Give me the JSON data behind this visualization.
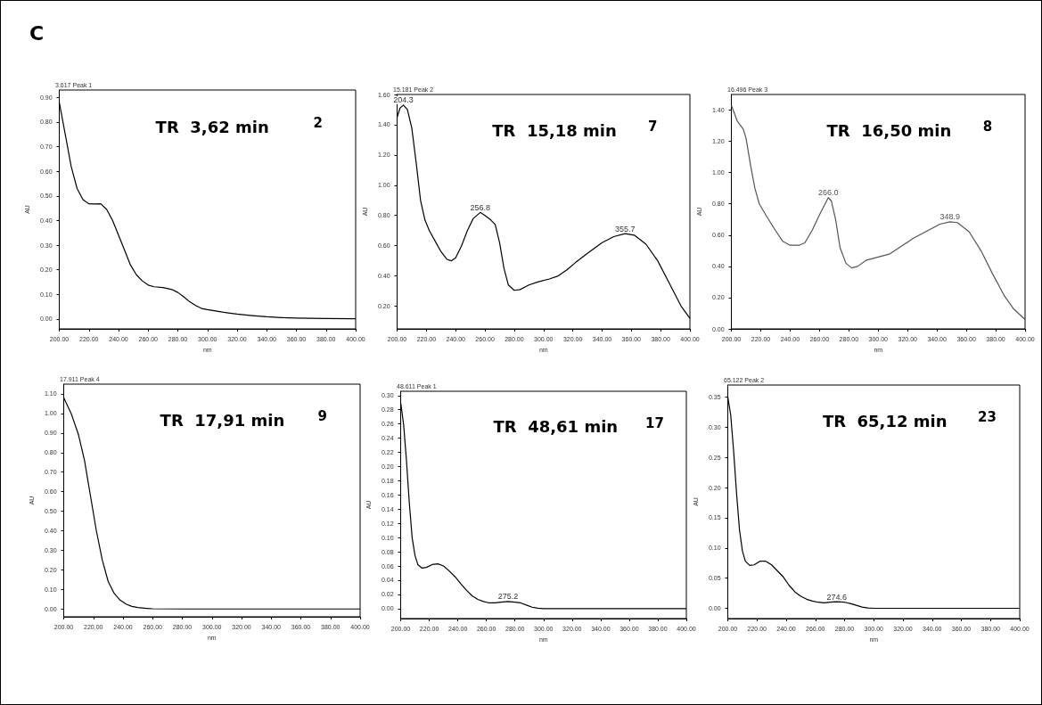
{
  "chart_data": [
    {
      "type": "line",
      "title": "3.617 Peak 1",
      "xlabel": "nm",
      "ylabel": "AU",
      "marker": "none",
      "annotations": [
        "TR  3,62 min",
        "2",
        "C"
      ],
      "x": [
        200,
        204,
        208,
        212,
        216,
        220,
        224,
        228,
        232,
        236,
        240,
        244,
        248,
        252,
        256,
        260,
        264,
        270,
        276,
        280,
        284,
        288,
        292,
        296,
        300,
        310,
        320,
        330,
        340,
        350,
        360,
        380,
        400
      ],
      "series": [
        {
          "color": "#000000",
          "values": [
            0.88,
            0.75,
            0.62,
            0.53,
            0.485,
            0.468,
            0.467,
            0.468,
            0.445,
            0.4,
            0.34,
            0.28,
            0.22,
            0.18,
            0.155,
            0.138,
            0.131,
            0.128,
            0.12,
            0.108,
            0.09,
            0.07,
            0.055,
            0.043,
            0.038,
            0.028,
            0.02,
            0.014,
            0.009,
            0.006,
            0.004,
            0.002,
            0.001
          ]
        }
      ],
      "xlim": [
        200,
        400
      ],
      "ylim": [
        -0.04,
        0.93
      ],
      "xticks": [
        {
          "value": 200,
          "label": "200.00"
        },
        {
          "value": 220,
          "label": "220.00"
        },
        {
          "value": 240,
          "label": "240.00"
        },
        {
          "value": 260,
          "label": "260.00"
        },
        {
          "value": 280,
          "label": "280.00"
        },
        {
          "value": 300,
          "label": "300.00"
        },
        {
          "value": 320,
          "label": "320.00"
        },
        {
          "value": 340,
          "label": "340.00"
        },
        {
          "value": 360,
          "label": "360.00"
        },
        {
          "value": 380,
          "label": "380.00"
        },
        {
          "value": 400,
          "label": "400.00"
        }
      ],
      "yticks": [
        {
          "value": 0,
          "label": "0.00"
        },
        {
          "value": 0.1,
          "label": "0.10"
        },
        {
          "value": 0.2,
          "label": "0.20"
        },
        {
          "value": 0.3,
          "label": "0.30"
        },
        {
          "value": 0.4,
          "label": "0.40"
        },
        {
          "value": 0.5,
          "label": "0.50"
        },
        {
          "value": 0.6,
          "label": "0.60"
        },
        {
          "value": 0.7,
          "label": "0.70"
        },
        {
          "value": 0.8,
          "label": "0.80"
        },
        {
          "value": 0.9,
          "label": "0.90"
        }
      ]
    },
    {
      "type": "line",
      "title": "15.181 Peak 2",
      "xlabel": "nm",
      "ylabel": "AU",
      "marker": "none",
      "annotations": [
        "TR  15,18 min",
        "7",
        {
          "text": "204.3",
          "x": 204.3,
          "y": 1.53
        },
        {
          "text": "256.8",
          "x": 256.8,
          "y": 0.82
        },
        {
          "text": "355.7",
          "x": 355.7,
          "y": 0.68
        }
      ],
      "x": [
        200,
        202,
        204.3,
        207,
        210,
        213,
        216,
        219,
        222,
        226,
        230,
        234,
        237,
        240,
        244,
        248,
        252,
        256.8,
        260,
        264,
        267,
        270,
        273,
        276,
        280,
        284,
        290,
        296,
        304,
        310,
        316,
        322,
        330,
        340,
        348,
        355.7,
        362,
        370,
        378,
        386,
        394,
        400
      ],
      "series": [
        {
          "color": "#000000",
          "values": [
            1.45,
            1.51,
            1.53,
            1.5,
            1.38,
            1.15,
            0.9,
            0.77,
            0.7,
            0.63,
            0.56,
            0.51,
            0.5,
            0.52,
            0.6,
            0.7,
            0.78,
            0.82,
            0.8,
            0.77,
            0.74,
            0.62,
            0.45,
            0.34,
            0.305,
            0.31,
            0.34,
            0.36,
            0.38,
            0.4,
            0.44,
            0.49,
            0.55,
            0.62,
            0.66,
            0.68,
            0.67,
            0.61,
            0.5,
            0.35,
            0.2,
            0.12
          ]
        }
      ],
      "xlim": [
        200,
        400
      ],
      "ylim": [
        0.05,
        1.6
      ],
      "xticks": [
        {
          "value": 200,
          "label": "200.00"
        },
        {
          "value": 220,
          "label": "220.00"
        },
        {
          "value": 240,
          "label": "240.00"
        },
        {
          "value": 260,
          "label": "260.00"
        },
        {
          "value": 280,
          "label": "280.00"
        },
        {
          "value": 300,
          "label": "300.00"
        },
        {
          "value": 320,
          "label": "320.00"
        },
        {
          "value": 340,
          "label": "340.00"
        },
        {
          "value": 360,
          "label": "360.00"
        },
        {
          "value": 380,
          "label": "380.00"
        },
        {
          "value": 400,
          "label": "400.00"
        }
      ],
      "yticks": [
        {
          "value": 0.2,
          "label": "0.20"
        },
        {
          "value": 0.4,
          "label": "0.40"
        },
        {
          "value": 0.6,
          "label": "0.60"
        },
        {
          "value": 0.8,
          "label": "0.80"
        },
        {
          "value": 1.0,
          "label": "1.00"
        },
        {
          "value": 1.2,
          "label": "1.20"
        },
        {
          "value": 1.4,
          "label": "1.40"
        },
        {
          "value": 1.6,
          "label": "1.60"
        }
      ]
    },
    {
      "type": "line",
      "title": "16.496 Peak 3",
      "xlabel": "nm",
      "ylabel": "AU",
      "marker": "none",
      "annotations": [
        "TR  16,50 min",
        "8",
        {
          "text": "266.0",
          "x": 266,
          "y": 0.84
        },
        {
          "text": "348.9",
          "x": 348.9,
          "y": 0.685
        }
      ],
      "x": [
        200,
        202,
        204,
        208,
        210,
        213,
        216,
        219,
        224,
        230,
        235,
        240,
        246,
        250,
        255,
        260,
        266,
        268,
        271,
        274,
        278,
        282,
        286,
        292,
        300,
        308,
        316,
        324,
        334,
        342,
        348.9,
        354,
        362,
        370,
        378,
        386,
        392,
        400
      ],
      "series": [
        {
          "color": "#555555",
          "values": [
            1.43,
            1.38,
            1.33,
            1.28,
            1.22,
            1.05,
            0.9,
            0.8,
            0.72,
            0.63,
            0.56,
            0.535,
            0.535,
            0.55,
            0.63,
            0.73,
            0.84,
            0.82,
            0.7,
            0.52,
            0.42,
            0.39,
            0.4,
            0.44,
            0.46,
            0.48,
            0.53,
            0.58,
            0.63,
            0.67,
            0.685,
            0.68,
            0.62,
            0.5,
            0.35,
            0.21,
            0.13,
            0.06
          ]
        }
      ],
      "xlim": [
        200,
        400
      ],
      "ylim": [
        0,
        1.5
      ],
      "xticks": [
        {
          "value": 200,
          "label": "200.00"
        },
        {
          "value": 220,
          "label": "220.00"
        },
        {
          "value": 240,
          "label": "240.00"
        },
        {
          "value": 260,
          "label": "260.00"
        },
        {
          "value": 280,
          "label": "280.00"
        },
        {
          "value": 300,
          "label": "300.00"
        },
        {
          "value": 320,
          "label": "320.00"
        },
        {
          "value": 340,
          "label": "340.00"
        },
        {
          "value": 360,
          "label": "360.00"
        },
        {
          "value": 380,
          "label": "380.00"
        },
        {
          "value": 400,
          "label": "400.00"
        }
      ],
      "yticks": [
        {
          "value": 0,
          "label": "0.00"
        },
        {
          "value": 0.2,
          "label": "0.20"
        },
        {
          "value": 0.4,
          "label": "0.40"
        },
        {
          "value": 0.6,
          "label": "0.60"
        },
        {
          "value": 0.8,
          "label": "0.80"
        },
        {
          "value": 1.0,
          "label": "1.00"
        },
        {
          "value": 1.2,
          "label": "1.20"
        },
        {
          "value": 1.4,
          "label": "1.40"
        }
      ]
    },
    {
      "type": "line",
      "title": "17.911 Peak 4",
      "xlabel": "nm",
      "ylabel": "AU",
      "marker": "none",
      "annotations": [
        "TR  17,91 min",
        "9"
      ],
      "x": [
        200,
        205,
        210,
        214,
        218,
        222,
        226,
        230,
        234,
        238,
        242,
        246,
        250,
        256,
        260,
        280,
        300,
        320,
        360,
        400
      ],
      "series": [
        {
          "color": "#000000",
          "values": [
            1.08,
            1.0,
            0.89,
            0.76,
            0.58,
            0.4,
            0.25,
            0.14,
            0.08,
            0.045,
            0.025,
            0.013,
            0.007,
            0.003,
            0.001,
            0,
            0,
            0,
            0,
            0
          ]
        }
      ],
      "xlim": [
        200,
        400
      ],
      "ylim": [
        -0.04,
        1.15
      ],
      "xticks": [
        {
          "value": 200,
          "label": "200.00"
        },
        {
          "value": 220,
          "label": "220.00"
        },
        {
          "value": 240,
          "label": "240.00"
        },
        {
          "value": 260,
          "label": "260.00"
        },
        {
          "value": 280,
          "label": "280.00"
        },
        {
          "value": 300,
          "label": "300.00"
        },
        {
          "value": 320,
          "label": "320.00"
        },
        {
          "value": 340,
          "label": "340.00"
        },
        {
          "value": 360,
          "label": "360.00"
        },
        {
          "value": 380,
          "label": "380.00"
        },
        {
          "value": 400,
          "label": "400.00"
        }
      ],
      "yticks": [
        {
          "value": 0,
          "label": "0.00"
        },
        {
          "value": 0.1,
          "label": "0.10"
        },
        {
          "value": 0.2,
          "label": "0.20"
        },
        {
          "value": 0.3,
          "label": "0.30"
        },
        {
          "value": 0.4,
          "label": "0.40"
        },
        {
          "value": 0.5,
          "label": "0.50"
        },
        {
          "value": 0.6,
          "label": "0.60"
        },
        {
          "value": 0.7,
          "label": "0.70"
        },
        {
          "value": 0.8,
          "label": "0.80"
        },
        {
          "value": 0.9,
          "label": "0.90"
        },
        {
          "value": 1.0,
          "label": "1.00"
        },
        {
          "value": 1.1,
          "label": "1.10"
        }
      ]
    },
    {
      "type": "line",
      "title": "48.611 Peak 1",
      "xlabel": "nm",
      "ylabel": "AU",
      "marker": "none",
      "annotations": [
        "TR  48,61 min",
        "17",
        {
          "text": "275.2",
          "x": 275.2,
          "y": 0.01
        }
      ],
      "x": [
        200,
        202,
        204,
        206,
        208,
        210,
        212,
        215,
        218,
        222,
        226,
        230,
        234,
        238,
        242,
        246,
        250,
        254,
        258,
        262,
        266,
        270,
        275.2,
        280,
        284,
        288,
        292,
        296,
        300,
        340,
        400
      ],
      "series": [
        {
          "color": "#000000",
          "values": [
            0.29,
            0.26,
            0.21,
            0.15,
            0.1,
            0.075,
            0.062,
            0.057,
            0.058,
            0.062,
            0.063,
            0.06,
            0.053,
            0.045,
            0.035,
            0.026,
            0.018,
            0.013,
            0.01,
            0.008,
            0.008,
            0.009,
            0.01,
            0.009,
            0.008,
            0.005,
            0.002,
            0.0005,
            0,
            0,
            0
          ]
        }
      ],
      "xlim": [
        200,
        400
      ],
      "ylim": [
        -0.014,
        0.306
      ],
      "xticks": [
        {
          "value": 200,
          "label": "200.00"
        },
        {
          "value": 220,
          "label": "220.00"
        },
        {
          "value": 240,
          "label": "240.00"
        },
        {
          "value": 260,
          "label": "260.00"
        },
        {
          "value": 280,
          "label": "280.00"
        },
        {
          "value": 300,
          "label": "300.00"
        },
        {
          "value": 320,
          "label": "320.00"
        },
        {
          "value": 340,
          "label": "340.00"
        },
        {
          "value": 360,
          "label": "360.00"
        },
        {
          "value": 380,
          "label": "380.00"
        },
        {
          "value": 400,
          "label": "400.00"
        }
      ],
      "yticks": [
        {
          "value": 0,
          "label": "0.00"
        },
        {
          "value": 0.02,
          "label": "0.02"
        },
        {
          "value": 0.04,
          "label": "0.04"
        },
        {
          "value": 0.06,
          "label": "0.06"
        },
        {
          "value": 0.08,
          "label": "0.08"
        },
        {
          "value": 0.1,
          "label": "0.10"
        },
        {
          "value": 0.12,
          "label": "0.12"
        },
        {
          "value": 0.14,
          "label": "0.14"
        },
        {
          "value": 0.16,
          "label": "0.16"
        },
        {
          "value": 0.18,
          "label": "0.18"
        },
        {
          "value": 0.2,
          "label": "0.20"
        },
        {
          "value": 0.22,
          "label": "0.22"
        },
        {
          "value": 0.24,
          "label": "0.24"
        },
        {
          "value": 0.26,
          "label": "0.26"
        },
        {
          "value": 0.28,
          "label": "0.28"
        },
        {
          "value": 0.3,
          "label": "0.30"
        }
      ]
    },
    {
      "type": "line",
      "title": "65.122 Peak 2",
      "xlabel": "nm",
      "ylabel": "AU",
      "marker": "none",
      "annotations": [
        "TR  65,12 min",
        "23",
        {
          "text": "274.6",
          "x": 274.6,
          "y": 0.011
        }
      ],
      "x": [
        200,
        202,
        204,
        206,
        208,
        210,
        212,
        215,
        218,
        222,
        226,
        230,
        234,
        238,
        242,
        246,
        250,
        254,
        258,
        262,
        266,
        270,
        274.6,
        280,
        284,
        288,
        292,
        296,
        300,
        340,
        400
      ],
      "series": [
        {
          "color": "#000000",
          "values": [
            0.35,
            0.32,
            0.26,
            0.19,
            0.13,
            0.095,
            0.078,
            0.071,
            0.072,
            0.078,
            0.078,
            0.072,
            0.062,
            0.052,
            0.038,
            0.027,
            0.02,
            0.015,
            0.012,
            0.01,
            0.009,
            0.01,
            0.011,
            0.01,
            0.008,
            0.005,
            0.002,
            0.0005,
            0,
            0,
            0
          ]
        }
      ],
      "xlim": [
        200,
        400
      ],
      "ylim": [
        -0.017,
        0.37
      ],
      "xticks": [
        {
          "value": 200,
          "label": "200.00"
        },
        {
          "value": 220,
          "label": "220.00"
        },
        {
          "value": 240,
          "label": "240.00"
        },
        {
          "value": 260,
          "label": "260.00"
        },
        {
          "value": 280,
          "label": "280.00"
        },
        {
          "value": 300,
          "label": "300.00"
        },
        {
          "value": 320,
          "label": "320.00"
        },
        {
          "value": 340,
          "label": "340.00"
        },
        {
          "value": 360,
          "label": "360.00"
        },
        {
          "value": 380,
          "label": "380.00"
        },
        {
          "value": 400,
          "label": "400.00"
        }
      ],
      "yticks": [
        {
          "value": 0,
          "label": "0.00"
        },
        {
          "value": 0.05,
          "label": "0.05"
        },
        {
          "value": 0.1,
          "label": "0.10"
        },
        {
          "value": 0.15,
          "label": "0.15"
        },
        {
          "value": 0.2,
          "label": "0.20"
        },
        {
          "value": 0.25,
          "label": "0.25"
        },
        {
          "value": 0.3,
          "label": "0.30"
        },
        {
          "value": 0.35,
          "label": "0.35"
        }
      ]
    }
  ]
}
